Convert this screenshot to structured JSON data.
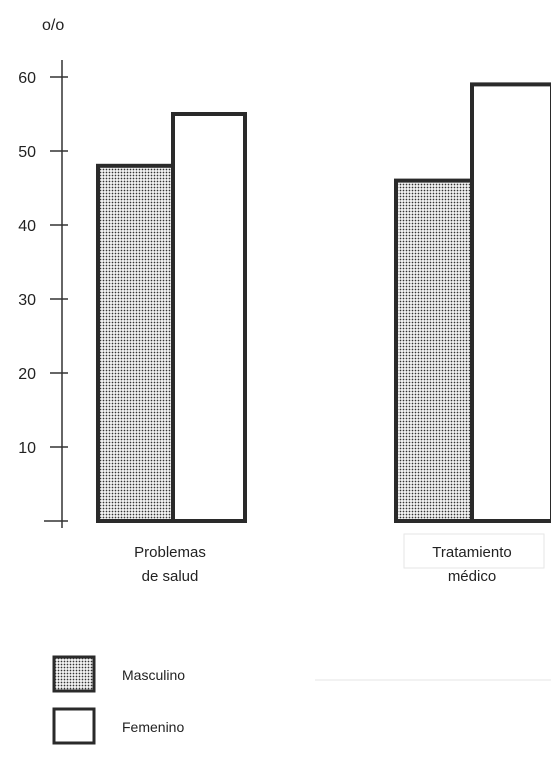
{
  "chart_data": {
    "type": "bar",
    "title": "",
    "xlabel": "",
    "ylabel": "o/o",
    "ylim": [
      0,
      64
    ],
    "yticks": [
      10,
      20,
      30,
      40,
      50,
      60
    ],
    "grid": false,
    "legend_position": "bottom-left",
    "categories": [
      "Problemas de salud",
      "Tratamiento médico"
    ],
    "category_lines": [
      [
        "Problemas",
        "de salud"
      ],
      [
        "Tratamiento",
        "médico"
      ]
    ],
    "series": [
      {
        "name": "Masculino",
        "values": [
          48,
          46
        ],
        "pattern": "dotted",
        "color": "#333333"
      },
      {
        "name": "Femenino",
        "values": [
          55,
          59
        ],
        "pattern": "none",
        "color": "#ffffff"
      }
    ]
  }
}
